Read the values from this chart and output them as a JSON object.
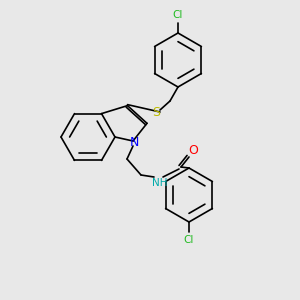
{
  "background_color": "#e8e8e8",
  "bond_color": "#000000",
  "atom_colors": {
    "Cl_top": "#22bb22",
    "Cl_bottom": "#22bb22",
    "S": "#bbbb00",
    "N": "#0000ff",
    "O": "#ff0000",
    "NH": "#00aaaa"
  },
  "figsize": [
    3.0,
    3.0
  ],
  "dpi": 100
}
